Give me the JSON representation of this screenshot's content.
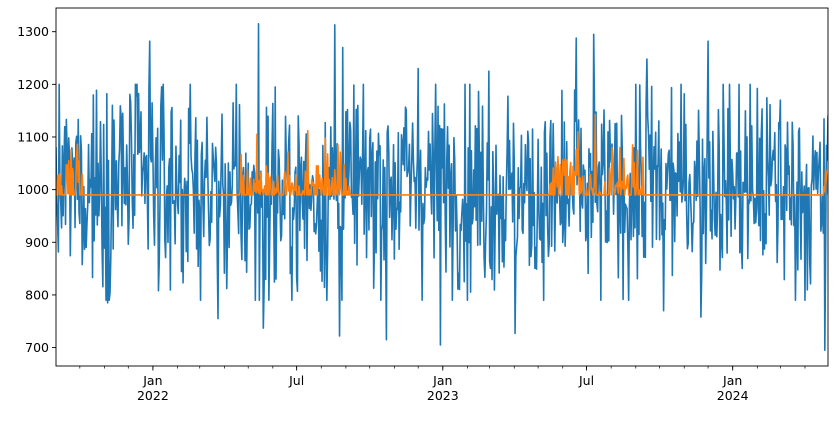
{
  "chart_data": {
    "type": "line",
    "title": "",
    "xlabel": "",
    "ylabel": "",
    "grid": false,
    "legend": "none",
    "x_range": [
      "2021-09-01",
      "2024-04-30"
    ],
    "ylim": [
      665,
      1345
    ],
    "y_ticks": [
      700,
      800,
      900,
      1000,
      1100,
      1200,
      1300
    ],
    "x_major_ticks": [
      {
        "date": "2022-01-01",
        "label": "Jan",
        "sublabel": "2022"
      },
      {
        "date": "2022-07-01",
        "label": "Jul",
        "sublabel": ""
      },
      {
        "date": "2023-01-01",
        "label": "Jan",
        "sublabel": "2023"
      },
      {
        "date": "2023-07-01",
        "label": "Jul",
        "sublabel": ""
      },
      {
        "date": "2024-01-01",
        "label": "Jan",
        "sublabel": "2024"
      }
    ],
    "series": [
      {
        "color": "#1f77b4",
        "kind": "daily noisy series oscillating around 1000",
        "baseline": 1000,
        "peaks": [
          {
            "date": "2021-10-18",
            "value": 1180
          },
          {
            "date": "2021-11-24",
            "value": 1145
          },
          {
            "date": "2021-12-28",
            "value": 1282
          },
          {
            "date": "2022-05-14",
            "value": 1315
          },
          {
            "date": "2022-06-04",
            "value": 1195
          },
          {
            "date": "2022-08-18",
            "value": 1313
          },
          {
            "date": "2022-08-28",
            "value": 1270
          },
          {
            "date": "2022-12-01",
            "value": 1230
          },
          {
            "date": "2023-02-28",
            "value": 1225
          },
          {
            "date": "2023-06-18",
            "value": 1288
          },
          {
            "date": "2023-07-10",
            "value": 1295
          },
          {
            "date": "2023-09-15",
            "value": 1248
          },
          {
            "date": "2023-12-01",
            "value": 1282
          },
          {
            "date": "2024-03-01",
            "value": 1170
          }
        ],
        "troughs": [
          {
            "date": "2021-11-05",
            "value": 785
          },
          {
            "date": "2022-03-24",
            "value": 755
          },
          {
            "date": "2022-05-20",
            "value": 737
          },
          {
            "date": "2022-08-24",
            "value": 722
          },
          {
            "date": "2022-10-22",
            "value": 715
          },
          {
            "date": "2022-12-29",
            "value": 705
          },
          {
            "date": "2023-04-02",
            "value": 727
          },
          {
            "date": "2023-10-06",
            "value": 770
          },
          {
            "date": "2023-11-22",
            "value": 758
          },
          {
            "date": "2024-04-26",
            "value": 695
          }
        ]
      },
      {
        "color": "#ff7f0e",
        "kind": "series flat at baseline with spikes in summer months",
        "baseline": 990,
        "active_windows": [
          [
            "2021-09-01",
            "2021-10-05"
          ],
          [
            "2022-04-20",
            "2022-09-05"
          ],
          [
            "2023-05-15",
            "2023-09-10"
          ],
          [
            "2024-04-25",
            "2024-04-30"
          ]
        ],
        "peaks": [
          {
            "date": "2021-09-06",
            "value": 1030
          },
          {
            "date": "2021-09-22",
            "value": 1040
          },
          {
            "date": "2022-05-12",
            "value": 1105
          },
          {
            "date": "2022-07-15",
            "value": 1112
          },
          {
            "date": "2022-08-06",
            "value": 1098
          },
          {
            "date": "2022-08-22",
            "value": 1085
          },
          {
            "date": "2023-06-20",
            "value": 1110
          },
          {
            "date": "2023-07-12",
            "value": 1143
          },
          {
            "date": "2023-08-02",
            "value": 1080
          },
          {
            "date": "2023-08-28",
            "value": 1085
          },
          {
            "date": "2024-04-28",
            "value": 1030
          }
        ]
      }
    ]
  }
}
